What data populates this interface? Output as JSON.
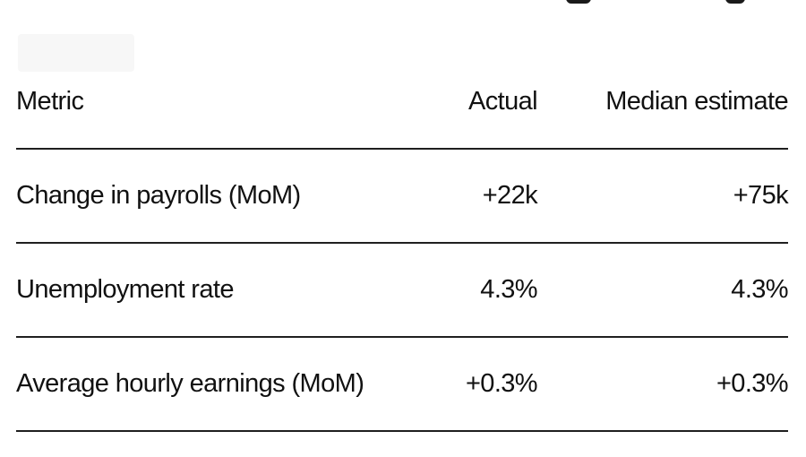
{
  "table": {
    "headers": [
      "Metric",
      "Actual",
      "Median estimate"
    ],
    "rows": [
      [
        "Change in payrolls (MoM)",
        "+22k",
        "+75k"
      ],
      [
        "Unemployment rate",
        "4.3%",
        "4.3%"
      ],
      [
        "Average hourly earnings (MoM)",
        "+0.3%",
        "+0.3%"
      ]
    ]
  }
}
